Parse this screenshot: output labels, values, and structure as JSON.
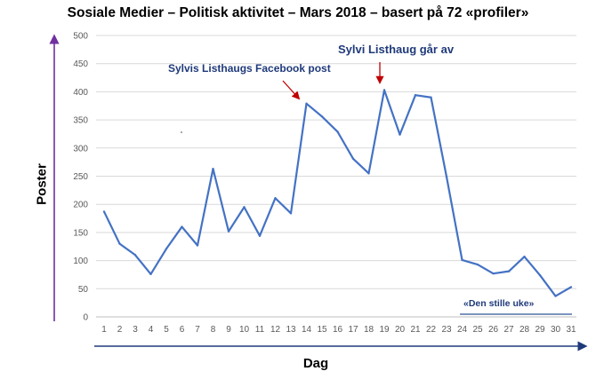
{
  "chart_data": {
    "type": "line",
    "title": "Sosiale Medier – Politisk aktivitet – Mars 2018 – basert på 72 «profiler»",
    "xlabel": "Dag",
    "ylabel": "Poster",
    "x": [
      1,
      2,
      3,
      4,
      5,
      6,
      7,
      8,
      9,
      10,
      11,
      12,
      13,
      14,
      15,
      16,
      17,
      18,
      19,
      20,
      21,
      22,
      23,
      24,
      25,
      26,
      27,
      28,
      29,
      30,
      31
    ],
    "series": [
      {
        "name": "Poster",
        "color": "#4472c4",
        "values": [
          187,
          130,
          110,
          76,
          121,
          160,
          127,
          263,
          152,
          195,
          144,
          211,
          184,
          379,
          356,
          329,
          281,
          255,
          403,
          324,
          394,
          390,
          249,
          101,
          93,
          77,
          81,
          107,
          74,
          37,
          53
        ]
      }
    ],
    "ylim": [
      0,
      500
    ],
    "yticks": [
      0,
      50,
      100,
      150,
      200,
      250,
      300,
      350,
      400,
      450,
      500
    ],
    "grid": true,
    "annotations": [
      {
        "text": "Sylvis Listhaugs Facebook post",
        "target_day": 14
      },
      {
        "text": "Sylvi Listhaug går av",
        "target_day": 19
      },
      {
        "text": "«Den stille uke»",
        "from_day": 24,
        "to_day": 31
      }
    ]
  },
  "colors": {
    "line": "#4472c4",
    "grid": "#d9d9d9",
    "y_axis_arrow": "#7030a0",
    "x_axis_arrow": "#1f3a7a",
    "annotation_text": "#1f3a7a",
    "annotation_arrow": "#c00000",
    "quiet_week_line": "#2e5597"
  }
}
